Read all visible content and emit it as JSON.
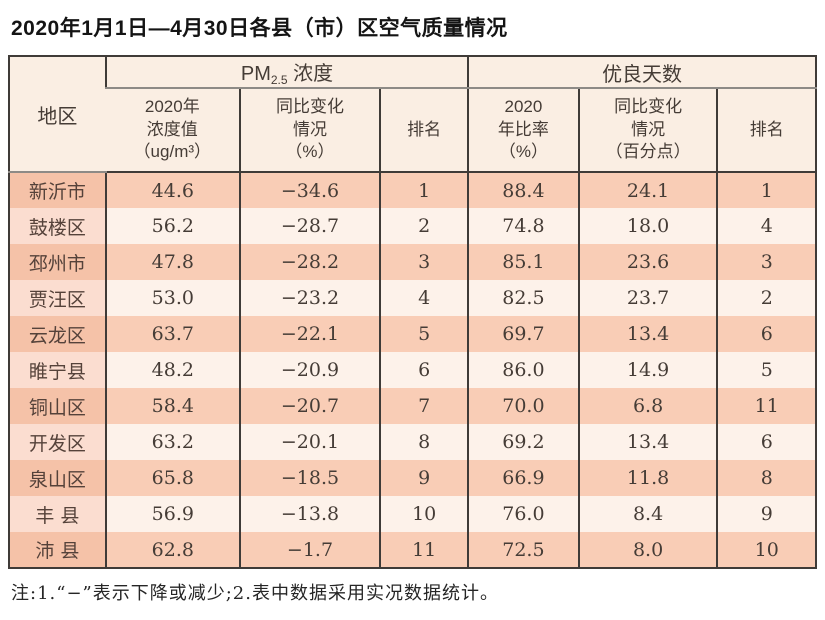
{
  "title": "2020年1月1日—4月30日各县（市）区空气质量情况",
  "note": "注:1.“−”表示下降或减少;2.表中数据采用实况数据统计。",
  "colors": {
    "page_bg": "#ffffff",
    "header_bg": "#faeee3",
    "row_salmon": "#f9cdb6",
    "row_salmon_first": "#f5c2a8",
    "row_light": "#fdf2ea",
    "row_light_first": "#fbddd0",
    "border_dark": "#3f3b38",
    "border_gray": "#8d8a86",
    "text_dark": "#453c36",
    "title_color": "#141414",
    "note_color": "#262626"
  },
  "table": {
    "region_header": "地区",
    "group_headers": {
      "pm25_prefix": "PM",
      "pm25_subscript": "2.5",
      "pm25_suffix": " 浓度",
      "good_days": "优良天数"
    },
    "sub_headers": {
      "pm_value": "2020年\n浓度值\n（ug/m³）",
      "pm_change": "同比变化\n情况\n（%）",
      "pm_rank": "排名",
      "good_ratio": "2020\n年比率\n（%）",
      "good_change": "同比变化\n情况\n（百分点）",
      "good_rank": "排名"
    },
    "rows": [
      {
        "region": "新沂市",
        "pm_value": "44.6",
        "pm_change": "−34.6",
        "pm_rank": "1",
        "good_ratio": "88.4",
        "good_change": "24.1",
        "good_rank": "1"
      },
      {
        "region": "鼓楼区",
        "pm_value": "56.2",
        "pm_change": "−28.7",
        "pm_rank": "2",
        "good_ratio": "74.8",
        "good_change": "18.0",
        "good_rank": "4"
      },
      {
        "region": "邳州市",
        "pm_value": "47.8",
        "pm_change": "−28.2",
        "pm_rank": "3",
        "good_ratio": "85.1",
        "good_change": "23.6",
        "good_rank": "3"
      },
      {
        "region": "贾汪区",
        "pm_value": "53.0",
        "pm_change": "−23.2",
        "pm_rank": "4",
        "good_ratio": "82.5",
        "good_change": "23.7",
        "good_rank": "2"
      },
      {
        "region": "云龙区",
        "pm_value": "63.7",
        "pm_change": "−22.1",
        "pm_rank": "5",
        "good_ratio": "69.7",
        "good_change": "13.4",
        "good_rank": "6"
      },
      {
        "region": "睢宁县",
        "pm_value": "48.2",
        "pm_change": "−20.9",
        "pm_rank": "6",
        "good_ratio": "86.0",
        "good_change": "14.9",
        "good_rank": "5"
      },
      {
        "region": "铜山区",
        "pm_value": "58.4",
        "pm_change": "−20.7",
        "pm_rank": "7",
        "good_ratio": "70.0",
        "good_change": "6.8",
        "good_rank": "11"
      },
      {
        "region": "开发区",
        "pm_value": "63.2",
        "pm_change": "−20.1",
        "pm_rank": "8",
        "good_ratio": "69.2",
        "good_change": "13.4",
        "good_rank": "6"
      },
      {
        "region": "泉山区",
        "pm_value": "65.8",
        "pm_change": "−18.5",
        "pm_rank": "9",
        "good_ratio": "66.9",
        "good_change": "11.8",
        "good_rank": "8"
      },
      {
        "region": "丰 县",
        "pm_value": "56.9",
        "pm_change": "−13.8",
        "pm_rank": "10",
        "good_ratio": "76.0",
        "good_change": "8.4",
        "good_rank": "9"
      },
      {
        "region": "沛 县",
        "pm_value": "62.8",
        "pm_change": "−1.7",
        "pm_rank": "11",
        "good_ratio": "72.5",
        "good_change": "8.0",
        "good_rank": "10"
      }
    ]
  },
  "chart_data": {
    "type": "table",
    "title": "2020年1月1日—4月30日各县（市）区空气质量情况",
    "columns": [
      "地区",
      "PM2.5浓度 2020年浓度值（ug/m³）",
      "PM2.5浓度 同比变化情况（%）",
      "PM2.5浓度 排名",
      "优良天数 2020年比率（%）",
      "优良天数 同比变化情况（百分点）",
      "优良天数 排名"
    ],
    "rows": [
      [
        "新沂市",
        44.6,
        -34.6,
        1,
        88.4,
        24.1,
        1
      ],
      [
        "鼓楼区",
        56.2,
        -28.7,
        2,
        74.8,
        18.0,
        4
      ],
      [
        "邳州市",
        47.8,
        -28.2,
        3,
        85.1,
        23.6,
        3
      ],
      [
        "贾汪区",
        53.0,
        -23.2,
        4,
        82.5,
        23.7,
        2
      ],
      [
        "云龙区",
        63.7,
        -22.1,
        5,
        69.7,
        13.4,
        6
      ],
      [
        "睢宁县",
        48.2,
        -20.9,
        6,
        86.0,
        14.9,
        5
      ],
      [
        "铜山区",
        58.4,
        -20.7,
        7,
        70.0,
        6.8,
        11
      ],
      [
        "开发区",
        63.2,
        -20.1,
        8,
        69.2,
        13.4,
        6
      ],
      [
        "泉山区",
        65.8,
        -18.5,
        9,
        66.9,
        11.8,
        8
      ],
      [
        "丰县",
        56.9,
        -13.8,
        10,
        76.0,
        8.4,
        9
      ],
      [
        "沛县",
        62.8,
        -1.7,
        11,
        72.5,
        8.0,
        10
      ]
    ],
    "footnote": "注:1.“−”表示下降或减少;2.表中数据采用实况数据统计。"
  }
}
